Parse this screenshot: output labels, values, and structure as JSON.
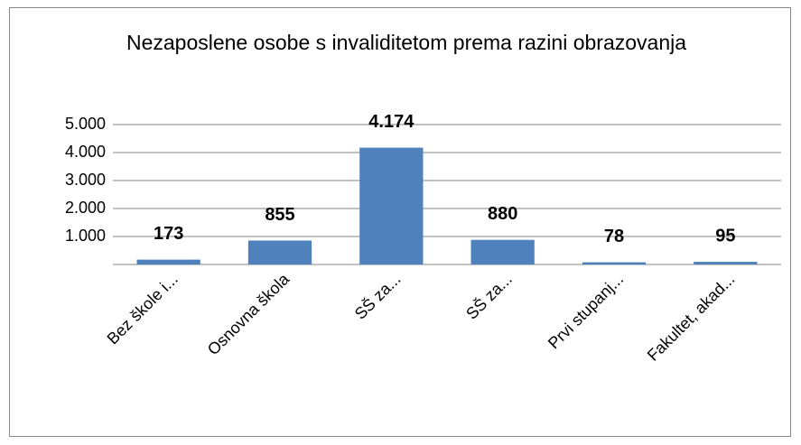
{
  "chart_data": {
    "type": "bar",
    "title": "Nezaposlene osobe s invaliditetom prema razini obrazovanja",
    "categories": [
      "Bez škole i...",
      "Osnovna škola",
      "SŠ za...",
      "SŠ za...",
      "Prvi stupanj...",
      "Fakultet, akad..."
    ],
    "values": [
      173,
      855,
      4174,
      880,
      78,
      95
    ],
    "value_labels": [
      "173",
      "855",
      "4.174",
      "880",
      "78",
      "95"
    ],
    "color": "#4f81bd",
    "ylim": [
      0,
      5000
    ],
    "yticks": [
      {
        "value": 1000,
        "label": "1.000"
      },
      {
        "value": 2000,
        "label": "2.000"
      },
      {
        "value": 3000,
        "label": "3.000"
      },
      {
        "value": 4000,
        "label": "4.000"
      },
      {
        "value": 5000,
        "label": "5.000"
      }
    ],
    "grid": true
  }
}
